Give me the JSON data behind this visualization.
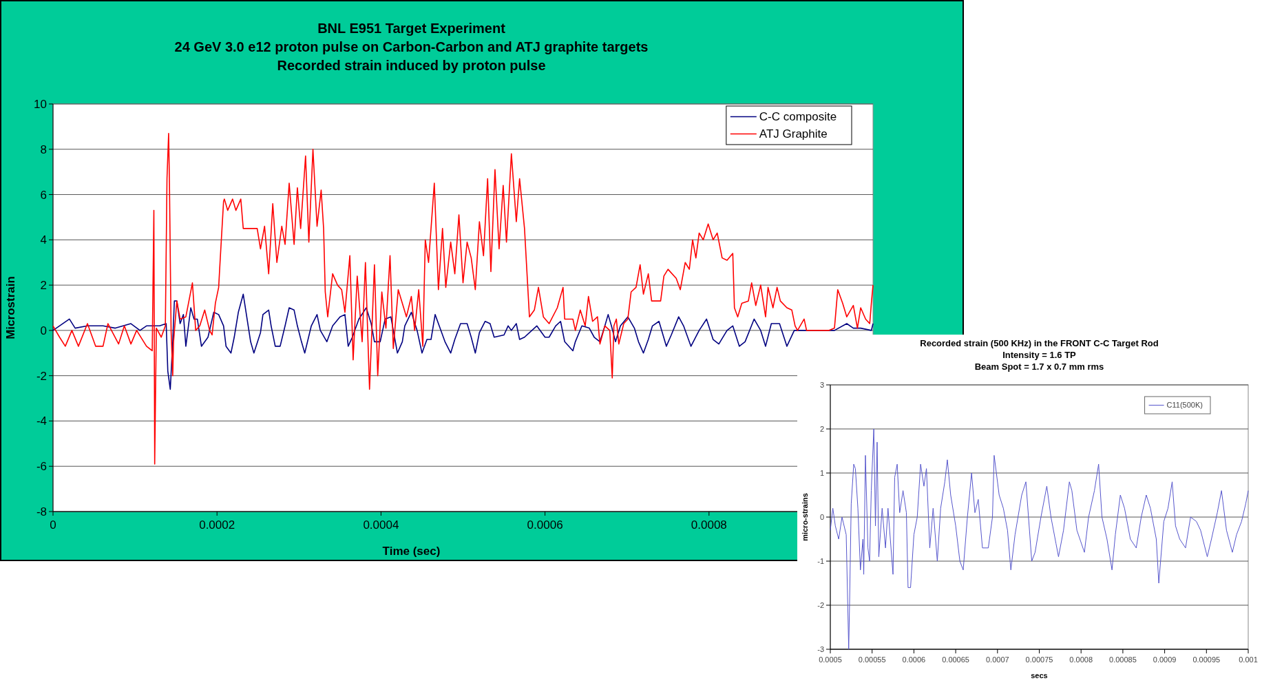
{
  "chart_data": [
    {
      "type": "line",
      "title": "BNL E951 Target Experiment\n24 GeV 3.0 e12 proton pulse on Carbon-Carbon and ATJ graphite targets\nRecorded strain induced by proton pulse",
      "xlabel": "Time (sec)",
      "ylabel": "Microstrain",
      "xlim": [
        0,
        0.001
      ],
      "xticks": [
        0,
        0.0002,
        0.0004,
        0.0006,
        0.0008
      ],
      "ylim": [
        -8,
        10
      ],
      "yticks": [
        -8,
        -6,
        -4,
        -2,
        0,
        2,
        4,
        6,
        8,
        10
      ],
      "grid": "y",
      "legend": "top right",
      "series": [
        {
          "name": "C-C composite",
          "color": "#000080",
          "x": [
            0,
            2e-05,
            2.7e-05,
            4.2e-05,
            6.1e-05,
            7.6e-05,
            9.5e-05,
            0.000106,
            0.000114,
            0.000121,
            0.00013,
            0.000138,
            0.00014,
            0.000143,
            0.000146,
            0.000148,
            0.000151,
            0.000155,
            0.000159,
            0.000162,
            0.000168,
            0.000172,
            0.000176,
            0.000181,
            0.000189,
            0.000196,
            0.000202,
            0.000208,
            0.000211,
            0.000217,
            0.000221,
            0.000226,
            0.000232,
            0.000238,
            0.000241,
            0.000245,
            0.000253,
            0.000256,
            0.000263,
            0.000266,
            0.000271,
            0.000277,
            0.000283,
            0.000288,
            0.000294,
            0.000298,
            0.000303,
            0.000307,
            0.000315,
            0.000322,
            0.000326,
            0.000334,
            0.000341,
            0.00035,
            0.000356,
            0.00036,
            0.000365,
            0.000373,
            0.000382,
            0.000388,
            0.000392,
            0.000399,
            0.000405,
            0.000412,
            0.00042,
            0.000426,
            0.000429,
            0.000437,
            0.000444,
            0.00045,
            0.000456,
            0.000461,
            0.000466,
            0.000471,
            0.000478,
            0.000485,
            0.00049,
            0.000497,
            0.000505,
            0.00051,
            0.000515,
            0.00052,
            0.000527,
            0.000533,
            0.000538,
            0.00055,
            0.000555,
            0.000559,
            0.000565,
            0.000569,
            0.000575,
            0.00059,
            0.0006,
            0.000605,
            0.000613,
            0.000619,
            0.000624,
            0.000634,
            0.000637,
            0.000645,
            0.000654,
            0.00066,
            0.000667,
            0.000673,
            0.000677,
            0.000681,
            0.000686,
            0.000692,
            0.000701,
            0.000709,
            0.000714,
            0.00072,
            0.000726,
            0.000731,
            0.000739,
            0.000748,
            0.000754,
            0.000763,
            0.000769,
            0.000778,
            0.000788,
            0.000797,
            0.000805,
            0.000812,
            0.000822,
            0.000829,
            0.000837,
            0.000844,
            0.000855,
            0.000863,
            0.000869,
            0.000876,
            0.000886,
            0.000895,
            0.000904,
            0.000912,
            0.000931,
            0.000953,
            0.000968,
            0.000976,
            0.000985,
            0.000998,
            0.001
          ],
          "values": [
            0,
            0.5,
            0.1,
            0.2,
            0.2,
            0.1,
            0.3,
            0,
            0.2,
            0.2,
            0.2,
            0.3,
            -1.8,
            -2.6,
            -0.5,
            1.3,
            1.3,
            0.3,
            0.7,
            -0.7,
            1.0,
            0.5,
            0.5,
            -0.7,
            -0.3,
            0.8,
            0.7,
            0.2,
            -0.7,
            -1.0,
            -0.3,
            0.8,
            1.6,
            0.2,
            -0.5,
            -1.0,
            -0.1,
            0.7,
            0.9,
            0.2,
            -0.7,
            -0.7,
            0.2,
            1.0,
            0.9,
            0.2,
            -0.5,
            -1.0,
            0.2,
            0.7,
            0,
            -0.5,
            0.2,
            0.6,
            0.7,
            -0.7,
            -0.3,
            0.5,
            1.0,
            0.3,
            -0.5,
            -0.5,
            0.5,
            0.6,
            -1.0,
            -0.5,
            0.2,
            0.8,
            0,
            -1.0,
            -0.4,
            -0.4,
            0.7,
            0.2,
            -0.5,
            -1.0,
            -0.4,
            0.3,
            0.3,
            -0.3,
            -1.0,
            -0.1,
            0.4,
            0.3,
            -0.3,
            -0.2,
            0.2,
            0,
            0.3,
            -0.4,
            -0.3,
            0.2,
            -0.3,
            -0.3,
            0.2,
            0.4,
            -0.5,
            -0.9,
            -0.5,
            0.2,
            0.1,
            -0.3,
            -0.5,
            0.2,
            0.7,
            0.2,
            -0.5,
            0.2,
            0.6,
            0.1,
            -0.5,
            -1.0,
            -0.4,
            0.2,
            0.4,
            -0.7,
            -0.2,
            0.6,
            0.2,
            -0.7,
            0,
            0.5,
            -0.4,
            -0.6,
            0,
            0.2,
            -0.7,
            -0.5,
            0.5,
            0,
            -0.7,
            0.3,
            0.3,
            -0.7,
            0,
            0,
            0,
            0,
            0.3,
            0.1,
            0.1,
            0,
            0.3
          ]
        },
        {
          "name": "ATJ Graphite",
          "color": "#ff0000",
          "x": [
            0,
            8e-06,
            1.5e-05,
            2.3e-05,
            3.1e-05,
            4.2e-05,
            5.2e-05,
            6.1e-05,
            6.7e-05,
            8e-05,
            8.7e-05,
            9.5e-05,
            0.000102,
            0.000114,
            0.000121,
            0.000123,
            0.000124,
            0.000126,
            0.000132,
            0.000137,
            0.000139,
            0.000141,
            0.000142,
            0.000144,
            0.000146,
            0.000147,
            0.000151,
            0.000155,
            0.000162,
            0.00017,
            0.000174,
            0.000179,
            0.000185,
            0.000191,
            0.000194,
            0.000198,
            0.000202,
            0.000204,
            0.000208,
            0.000209,
            0.000213,
            0.000219,
            0.000223,
            0.000229,
            0.000232,
            0.000249,
            0.000253,
            0.000258,
            0.000263,
            0.000268,
            0.000273,
            0.000279,
            0.000283,
            0.000288,
            0.000294,
            0.000298,
            0.000302,
            0.000308,
            0.000312,
            0.000317,
            0.000322,
            0.000327,
            0.00033,
            0.000332,
            0.000335,
            0.000341,
            0.000347,
            0.000352,
            0.000356,
            0.000362,
            0.000366,
            0.000371,
            0.000377,
            0.000381,
            0.000386,
            0.000392,
            0.000396,
            0.000401,
            0.000406,
            0.000411,
            0.000415,
            0.000421,
            0.000426,
            0.000431,
            0.000437,
            0.000441,
            0.000446,
            0.000451,
            0.000454,
            0.000458,
            0.000465,
            0.00047,
            0.000475,
            0.000479,
            0.000485,
            0.00049,
            0.000495,
            0.0005,
            0.000505,
            0.00051,
            0.000515,
            0.00052,
            0.000525,
            0.00053,
            0.000534,
            0.000539,
            0.000544,
            0.000549,
            0.000553,
            0.000559,
            0.000565,
            0.000569,
            0.000575,
            0.000581,
            0.000587,
            0.000592,
            0.000598,
            0.000605,
            0.000615,
            0.000622,
            0.000624,
            0.000634,
            0.000637,
            0.000643,
            0.000649,
            0.000653,
            0.000658,
            0.000664,
            0.000667,
            0.000673,
            0.000679,
            0.000682,
            0.000684,
            0.000687,
            0.00069,
            0.000696,
            0.000701,
            0.000705,
            0.000711,
            0.000716,
            0.00072,
            0.000726,
            0.00073,
            0.000741,
            0.000745,
            0.00075,
            0.00076,
            0.000765,
            0.000771,
            0.000776,
            0.00078,
            0.000784,
            0.000788,
            0.000793,
            0.000799,
            0.000805,
            0.00081,
            0.000816,
            0.000822,
            0.000829,
            0.000831,
            0.000835,
            0.00084,
            0.000848,
            0.000852,
            0.000857,
            0.000863,
            0.000869,
            0.000872,
            0.000878,
            0.000883,
            0.000887,
            0.000895,
            0.000901,
            0.000905,
            0.000908,
            0.000916,
            0.000919,
            0.000931,
            0.000946,
            0.000953,
            0.000957,
            0.000963,
            0.000968,
            0.000976,
            0.000981,
            0.000985,
            0.000991,
            0.000996,
            0.000998,
            0.001
          ],
          "values": [
            0.2,
            -0.3,
            -0.7,
            0,
            -0.7,
            0.3,
            -0.7,
            -0.7,
            0.3,
            -0.6,
            0.2,
            -0.6,
            0,
            -0.7,
            -0.9,
            5.3,
            -5.9,
            0.1,
            -0.3,
            0.2,
            6.7,
            8.7,
            6.5,
            0,
            -2,
            -0.5,
            1.3,
            0.5,
            0.6,
            2.1,
            0,
            0.2,
            0.9,
            0,
            -0.2,
            1.2,
            1.9,
            3.2,
            5.7,
            5.8,
            5.3,
            5.8,
            5.3,
            5.8,
            4.5,
            4.5,
            3.6,
            4.6,
            2.5,
            5.6,
            3.0,
            4.6,
            3.8,
            6.5,
            3.8,
            6.3,
            4.5,
            7.7,
            3.9,
            8.0,
            4.6,
            6.2,
            4.5,
            1.7,
            0.6,
            2.5,
            2.0,
            1.8,
            0.8,
            3.3,
            -1.3,
            2.4,
            -0.5,
            3.0,
            -2.6,
            2.9,
            -2.0,
            1.7,
            0.1,
            3.3,
            -0.8,
            1.8,
            1.2,
            0.6,
            1.5,
            0,
            1.8,
            -0.7,
            4.0,
            3.0,
            6.5,
            1.8,
            4.5,
            1.9,
            3.9,
            2.5,
            5.1,
            2.1,
            3.9,
            3.2,
            1.8,
            4.8,
            3.3,
            6.7,
            2.6,
            7.1,
            3.6,
            6.4,
            3.9,
            7.8,
            4.8,
            6.7,
            4.5,
            0.6,
            0.9,
            1.9,
            0.6,
            0.3,
            1.0,
            1.9,
            0.5,
            0.5,
            0,
            0.9,
            0.2,
            1.5,
            0.4,
            0.6,
            -0.6,
            0.2,
            0,
            -2.1,
            0.2,
            0.5,
            -0.6,
            0.3,
            0.5,
            1.7,
            1.9,
            2.9,
            1.6,
            2.5,
            1.3,
            1.3,
            2.4,
            2.7,
            2.3,
            1.8,
            3.0,
            2.7,
            4.0,
            3.2,
            4.3,
            4.0,
            4.7,
            4.0,
            4.3,
            3.2,
            3.1,
            3.4,
            1.0,
            0.6,
            1.2,
            1.3,
            2.1,
            1.1,
            2.0,
            0.6,
            1.9,
            1.0,
            1.9,
            1.3,
            1.0,
            0.9,
            0.2,
            0,
            0.5,
            0,
            0,
            0,
            0.1,
            1.8,
            1.2,
            0.6,
            1.1,
            0.1,
            1.0,
            0.5,
            0.3,
            1.2,
            2.0
          ]
        }
      ]
    },
    {
      "type": "line",
      "title": "Recorded strain (500 KHz) in the FRONT C-C Target Rod\nIntensity = 1.6 TP\nBeam Spot = 1.7 x 0.7 mm rms",
      "xlabel": "secs",
      "ylabel": "micro-strains",
      "xlim": [
        0.0005,
        0.001
      ],
      "xticks": [
        0.0005,
        0.00055,
        0.0006,
        0.00065,
        0.0007,
        0.00075,
        0.0008,
        0.00085,
        0.0009,
        0.00095,
        0.001
      ],
      "ylim": [
        -3,
        3
      ],
      "yticks": [
        -3,
        -2,
        -1,
        0,
        1,
        2,
        3
      ],
      "grid": "y",
      "legend": "top right",
      "series": [
        {
          "name": "C11(500K)",
          "color": "#5555cc",
          "x": [
            0.0005,
            0.000503,
            0.000506,
            0.00051,
            0.000514,
            0.000519,
            0.000522,
            0.000523,
            0.000525,
            0.000528,
            0.00053,
            0.000533,
            0.000536,
            0.000539,
            0.00054,
            0.000542,
            0.000545,
            0.000547,
            0.000549,
            0.000552,
            0.000554,
            0.000556,
            0.000558,
            0.000562,
            0.000566,
            0.000569,
            0.000575,
            0.000577,
            0.00058,
            0.000583,
            0.000587,
            0.000591,
            0.000593,
            0.000596,
            0.0006,
            0.000604,
            0.000608,
            0.000612,
            0.000615,
            0.000619,
            0.000623,
            0.000628,
            0.000632,
            0.000637,
            0.00064,
            0.000644,
            0.00065,
            0.000655,
            0.000659,
            0.000664,
            0.000669,
            0.000673,
            0.000677,
            0.000682,
            0.000689,
            0.000694,
            0.000696,
            0.000702,
            0.000707,
            0.000712,
            0.000716,
            0.000721,
            0.000729,
            0.000734,
            0.000741,
            0.000745,
            0.000752,
            0.000759,
            0.000764,
            0.00077,
            0.000773,
            0.000779,
            0.000786,
            0.000789,
            0.000795,
            0.000804,
            0.000809,
            0.000816,
            0.000821,
            0.000825,
            0.000831,
            0.000837,
            0.000841,
            0.000847,
            0.000852,
            0.000859,
            0.000866,
            0.000872,
            0.000878,
            0.000883,
            0.00089,
            0.000893,
            0.000899,
            0.000904,
            0.000909,
            0.000913,
            0.000918,
            0.000925,
            0.000931,
            0.000938,
            0.000943,
            0.000951,
            0.000956,
            0.000963,
            0.000968,
            0.000974,
            0.000981,
            0.000986,
            0.000992,
            0.000997,
            0.001
          ],
          "values": [
            -0.3,
            0.2,
            -0.2,
            -0.5,
            0,
            -0.4,
            -3.0,
            -2.0,
            0.3,
            1.2,
            1.1,
            0.2,
            -1.2,
            -0.5,
            -1.3,
            1.4,
            -0.7,
            -1.0,
            0.6,
            2.0,
            -0.2,
            1.7,
            -0.9,
            0.2,
            -0.7,
            0.2,
            -1.3,
            0.9,
            1.2,
            0.1,
            0.6,
            0.1,
            -1.6,
            -1.6,
            -0.4,
            0,
            1.2,
            0.7,
            1.1,
            -0.7,
            0.2,
            -1.0,
            0.2,
            0.8,
            1.3,
            0.5,
            -0.2,
            -1.0,
            -1.2,
            0,
            1.0,
            0.1,
            0.4,
            -0.7,
            -0.7,
            0,
            1.4,
            0.5,
            0.2,
            -0.3,
            -1.2,
            -0.4,
            0.5,
            0.8,
            -1.0,
            -0.8,
            0,
            0.7,
            0,
            -0.6,
            -0.9,
            -0.3,
            0.8,
            0.6,
            -0.3,
            -0.8,
            0,
            0.6,
            1.2,
            0,
            -0.5,
            -1.2,
            -0.4,
            0.5,
            0.2,
            -0.5,
            -0.7,
            0,
            0.5,
            0.2,
            -0.5,
            -1.5,
            -0.1,
            0.2,
            0.8,
            -0.2,
            -0.5,
            -0.7,
            0,
            -0.1,
            -0.3,
            -0.9,
            -0.5,
            0.1,
            0.6,
            -0.3,
            -0.8,
            -0.4,
            -0.1,
            0.3,
            0.6
          ]
        }
      ]
    }
  ]
}
